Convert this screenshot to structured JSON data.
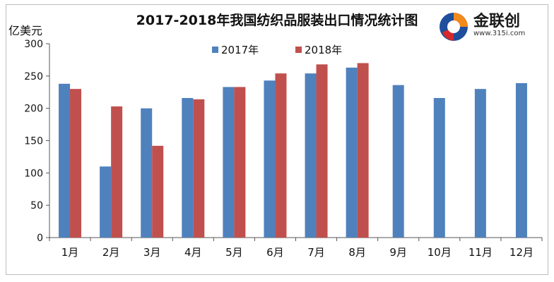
{
  "chart_data": {
    "type": "bar",
    "title": "2017-2018年我国纺织品服装出口情况统计图",
    "ylabel": "亿美元",
    "xlabel": "",
    "ylim": [
      0,
      300
    ],
    "yticks": [
      0,
      50,
      100,
      150,
      200,
      250,
      300
    ],
    "grid": false,
    "legend_position": "top",
    "categories": [
      "1月",
      "2月",
      "3月",
      "4月",
      "5月",
      "6月",
      "7月",
      "8月",
      "9月",
      "10月",
      "11月",
      "12月"
    ],
    "series": [
      {
        "name": "2017年",
        "color": "#4f81bd",
        "values": [
          238,
          110,
          200,
          216,
          233,
          243,
          254,
          263,
          236,
          216,
          230,
          239
        ]
      },
      {
        "name": "2018年",
        "color": "#c0504d",
        "values": [
          230,
          203,
          142,
          214,
          233,
          254,
          268,
          270,
          null,
          null,
          null,
          null
        ]
      }
    ]
  },
  "logo": {
    "name": "金联创",
    "url": "www.315i.com",
    "icon": "jinlianchuang-logo-icon"
  }
}
